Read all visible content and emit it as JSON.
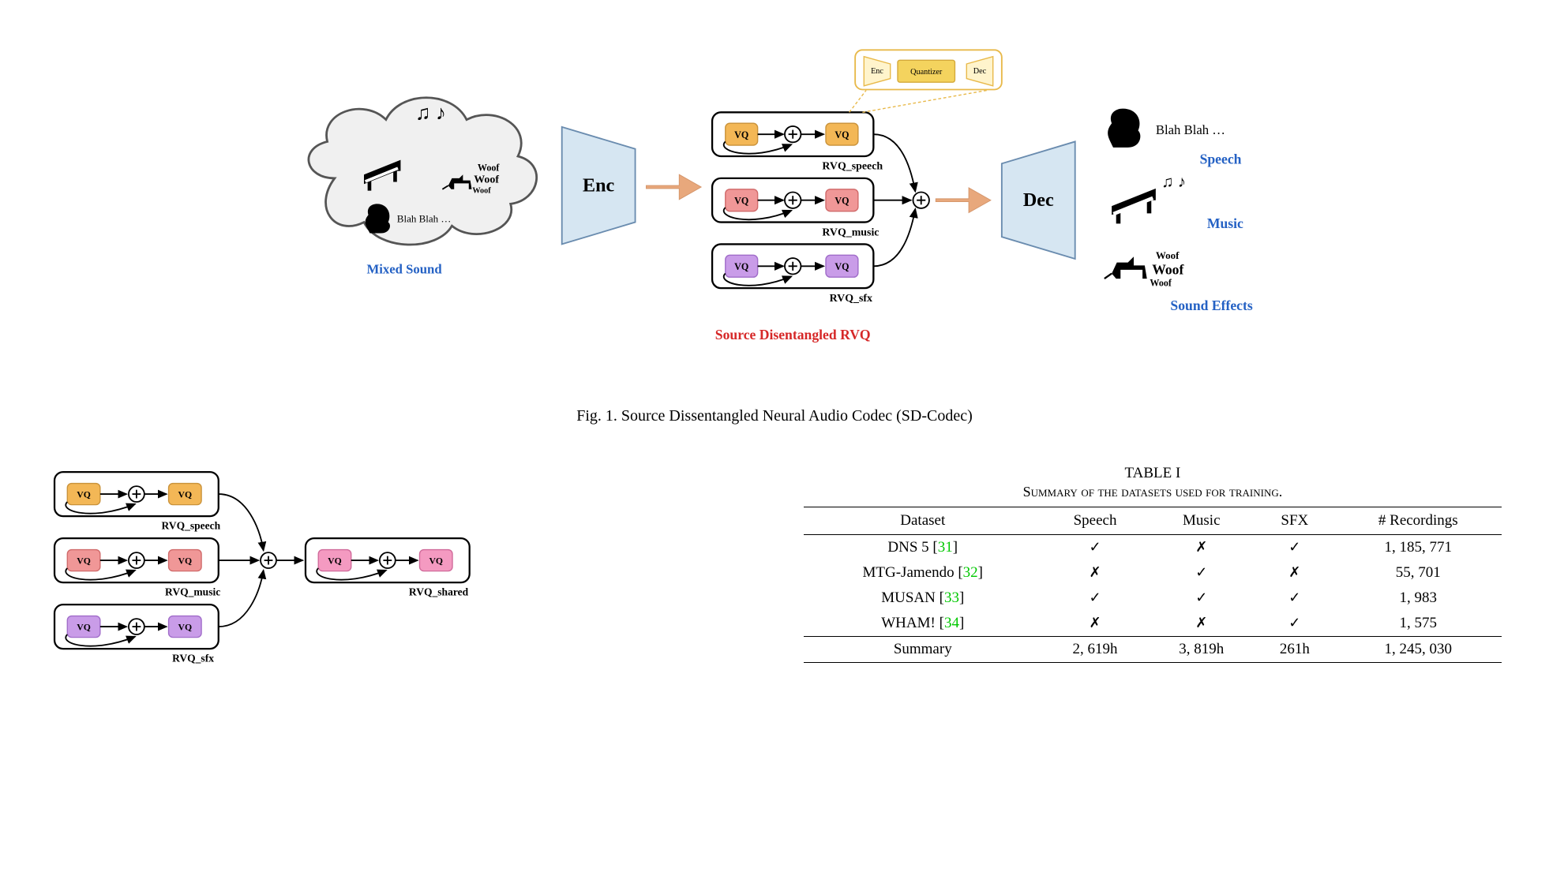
{
  "figure1": {
    "enc_label": "Enc",
    "dec_label": "Dec",
    "vq": "VQ",
    "rvq_speech": "RVQ_speech",
    "rvq_music": "RVQ_music",
    "rvq_sfx": "RVQ_sfx",
    "mixed_sound": "Mixed Sound",
    "speech_label": "Speech",
    "music_label": "Music",
    "sfx_label": "Sound Effects",
    "blah": "Blah Blah …",
    "woof1": "Woof",
    "woof2": "Woof",
    "woof3": "Woof",
    "sdrvq_title": "Source Disentangled RVQ",
    "callout_enc": "Enc",
    "callout_q": "Quantizer",
    "callout_dec": "Dec",
    "caption": "Fig. 1.   Source Dissentangled Neural Audio Codec (SD-Codec)",
    "colors": {
      "vq_speech": "#f3b756",
      "vq_music": "#f09797",
      "vq_sfx": "#c99ce8",
      "vq_shared": "#f49ac1",
      "enc_fill": "#d6e6f2",
      "arrow": "#e8a87c",
      "callout_fill": "#fff4cc",
      "callout_q": "#f4d35e",
      "label_blue": "#2461c4",
      "sdrvq_red": "#d62828",
      "cloud_fill": "#f0f0f0"
    }
  },
  "figure2": {
    "rvq_speech": "RVQ_speech",
    "rvq_music": "RVQ_music",
    "rvq_sfx": "RVQ_sfx",
    "rvq_shared": "RVQ_shared",
    "vq": "VQ"
  },
  "table": {
    "title": "TABLE I",
    "subtitle": "Summary of the datasets used for training.",
    "columns": [
      "Dataset",
      "Speech",
      "Music",
      "SFX",
      "# Recordings"
    ],
    "rows": [
      {
        "name": "DNS 5",
        "ref": "31",
        "speech": true,
        "music": false,
        "sfx": true,
        "rec": "1, 185, 771"
      },
      {
        "name": "MTG-Jamendo",
        "ref": "32",
        "speech": false,
        "music": true,
        "sfx": false,
        "rec": "55, 701"
      },
      {
        "name": "MUSAN",
        "ref": "33",
        "speech": true,
        "music": true,
        "sfx": true,
        "rec": "1, 983"
      },
      {
        "name": "WHAM!",
        "ref": "34",
        "speech": false,
        "music": false,
        "sfx": true,
        "rec": "1, 575"
      }
    ],
    "summary": {
      "label": "Summary",
      "speech": "2, 619h",
      "music": "3, 819h",
      "sfx": "261h",
      "rec": "1, 245, 030"
    }
  }
}
